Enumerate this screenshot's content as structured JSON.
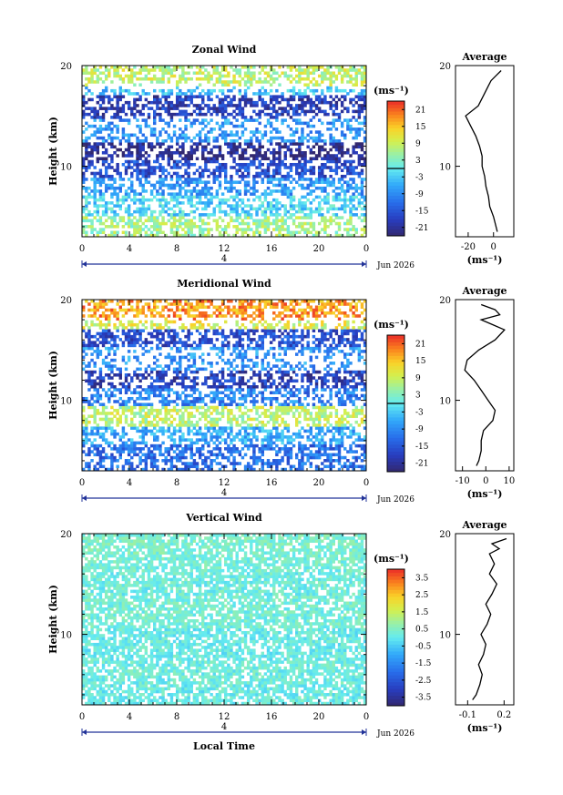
{
  "chart_data": [
    {
      "type": "heatmap",
      "title": "Zonal Wind",
      "ylabel": "Height (km)",
      "xlabel": "",
      "x_range": [
        0,
        24
      ],
      "ylim": [
        3,
        20
      ],
      "x_ticks": [
        "0",
        "4",
        "8",
        "12",
        "16",
        "20",
        "0"
      ],
      "y_ticks": [
        "10",
        "20"
      ],
      "date_label": "Jun 2026",
      "day_label": "4",
      "colorbar": {
        "label": "(ms⁻¹)",
        "ticks": [
          "21",
          "15",
          "9",
          "3",
          "-3",
          "-9",
          "-15",
          "-21"
        ],
        "range": [
          -24,
          24
        ],
        "zero_line": true
      },
      "profile": {
        "title": "Average",
        "x_ticks": [
          "-20",
          "0"
        ],
        "xlim": [
          -30,
          16
        ],
        "xlabel": "(ms⁻¹)",
        "y_ticks": [
          "10",
          "20"
        ],
        "heights": [
          3.5,
          4,
          5,
          6,
          7,
          8,
          9,
          10,
          11,
          12,
          13,
          14,
          15,
          16,
          17,
          18,
          18.5,
          19,
          19.5
        ],
        "values": [
          3,
          2,
          0,
          -3,
          -4,
          -6,
          -7,
          -9,
          -9,
          -11,
          -14,
          -18,
          -22,
          -12,
          -8,
          -4,
          -2,
          2,
          6
        ]
      },
      "features": [
        {
          "z": 18.5,
          "v": 8
        },
        {
          "z": 17.5,
          "v": -4
        },
        {
          "z": 16.5,
          "v": -18
        },
        {
          "z": 13,
          "v": -8
        },
        {
          "z": 11.5,
          "v": -22
        },
        {
          "z": 10,
          "v": -16
        },
        {
          "z": 8,
          "v": -8
        },
        {
          "z": 6,
          "v": -2
        },
        {
          "z": 4,
          "v": 6
        }
      ]
    },
    {
      "type": "heatmap",
      "title": "Meridional Wind",
      "ylabel": "Height (km)",
      "xlabel": "",
      "x_range": [
        0,
        24
      ],
      "ylim": [
        3,
        20
      ],
      "x_ticks": [
        "0",
        "4",
        "8",
        "12",
        "16",
        "20",
        "0"
      ],
      "y_ticks": [
        "10",
        "20"
      ],
      "date_label": "Jun 2026",
      "day_label": "4",
      "colorbar": {
        "label": "(ms⁻¹)",
        "ticks": [
          "21",
          "15",
          "9",
          "3",
          "-3",
          "-9",
          "-15",
          "-21"
        ],
        "range": [
          -24,
          24
        ],
        "zero_line": true
      },
      "profile": {
        "title": "Average",
        "x_ticks": [
          "-10",
          "0",
          "10"
        ],
        "xlim": [
          -13,
          12
        ],
        "xlabel": "(ms⁻¹)",
        "y_ticks": [
          "10",
          "20"
        ],
        "heights": [
          3.5,
          4,
          5,
          6,
          7,
          8,
          9,
          10,
          11,
          12,
          13,
          14,
          15,
          16,
          17,
          17.5,
          18,
          18.5,
          19,
          19.5
        ],
        "values": [
          -4,
          -3,
          -2,
          -2,
          -1,
          3,
          4,
          1,
          -2,
          -5,
          -9,
          -8,
          -3,
          4,
          8,
          3,
          -2,
          6,
          4,
          -2
        ]
      },
      "features": [
        {
          "z": 18.5,
          "v": 18
        },
        {
          "z": 17.5,
          "v": 10
        },
        {
          "z": 16.5,
          "v": -16
        },
        {
          "z": 14,
          "v": -8
        },
        {
          "z": 12,
          "v": -18
        },
        {
          "z": 10.5,
          "v": -10
        },
        {
          "z": 8.5,
          "v": 8
        },
        {
          "z": 6.5,
          "v": -6
        },
        {
          "z": 4.5,
          "v": -12
        }
      ]
    },
    {
      "type": "heatmap",
      "title": "Vertical Wind",
      "ylabel": "Height (km)",
      "xlabel": "Local Time",
      "x_range": [
        0,
        24
      ],
      "ylim": [
        3,
        20
      ],
      "x_ticks": [
        "0",
        "4",
        "8",
        "12",
        "16",
        "20",
        "0"
      ],
      "y_ticks": [
        "10",
        "20"
      ],
      "date_label": "Jun 2026",
      "day_label": "4",
      "colorbar": {
        "label": "(ms⁻¹)",
        "ticks": [
          "3.5",
          "2.5",
          "1.5",
          "0.5",
          "-0.5",
          "-1.5",
          "-2.5",
          "-3.5"
        ],
        "range": [
          -4,
          4
        ],
        "zero_line": false
      },
      "profile": {
        "title": "Average",
        "x_ticks": [
          "-0.1",
          "0.2"
        ],
        "xlim": [
          -0.2,
          0.28
        ],
        "xlabel": "(ms⁻¹)",
        "y_ticks": [
          "10",
          "20"
        ],
        "heights": [
          3.5,
          4,
          5,
          6,
          7,
          8,
          9,
          10,
          11,
          12,
          13,
          14,
          15,
          16,
          17,
          18,
          18.5,
          19,
          19.5
        ],
        "values": [
          -0.06,
          -0.03,
          0.0,
          0.02,
          -0.01,
          0.03,
          0.05,
          0.01,
          0.06,
          0.09,
          0.05,
          0.1,
          0.14,
          0.08,
          0.12,
          0.08,
          0.16,
          0.1,
          0.22
        ]
      },
      "features": [
        {
          "z": 18.8,
          "v": 0.4
        },
        {
          "z": 17,
          "v": 0.3
        },
        {
          "z": 15.5,
          "v": 0.2
        },
        {
          "z": 12,
          "v": 0.3
        },
        {
          "z": 9,
          "v": 0.1
        },
        {
          "z": 6,
          "v": 0.2
        },
        {
          "z": 4,
          "v": 0.1
        }
      ]
    }
  ]
}
